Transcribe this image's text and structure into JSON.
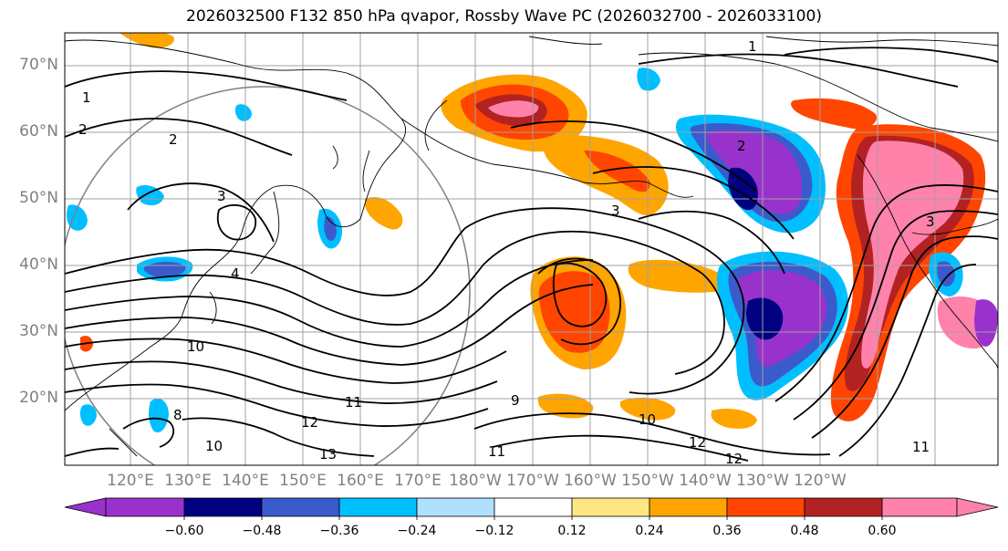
{
  "title": "2026032500 F132 850 hPa qvapor, Rossby Wave PC (2026032700 - 2026033100)",
  "lat_labels": [
    "70°N",
    "60°N",
    "50°N",
    "40°N",
    "30°N",
    "20°N"
  ],
  "lat_values": [
    70,
    60,
    50,
    40,
    30,
    20
  ],
  "lon_labels": [
    "120°E",
    "130°E",
    "140°E",
    "150°E",
    "160°E",
    "170°E",
    "180°W",
    "170°W",
    "160°W",
    "150°W",
    "140°W",
    "130°W",
    "120°W"
  ],
  "colorbar": {
    "ticks": [
      "−0.60",
      "−0.48",
      "−0.36",
      "−0.24",
      "−0.12",
      "0.12",
      "0.24",
      "0.36",
      "0.48",
      "0.60"
    ],
    "colors": [
      "#9932cc",
      "#000080",
      "#3b5bcc",
      "#00bfff",
      "#b0e0ff",
      "#ffffff",
      "#ffe680",
      "#ffa500",
      "#ff4500",
      "#b22222",
      "#ff82ab"
    ]
  },
  "contour_labels": [
    "1",
    "1",
    "2",
    "2",
    "2",
    "3",
    "3",
    "3",
    "4",
    "10",
    "10",
    "10",
    "11",
    "11",
    "12",
    "12",
    "13",
    "9",
    "8",
    "11",
    "12"
  ]
}
